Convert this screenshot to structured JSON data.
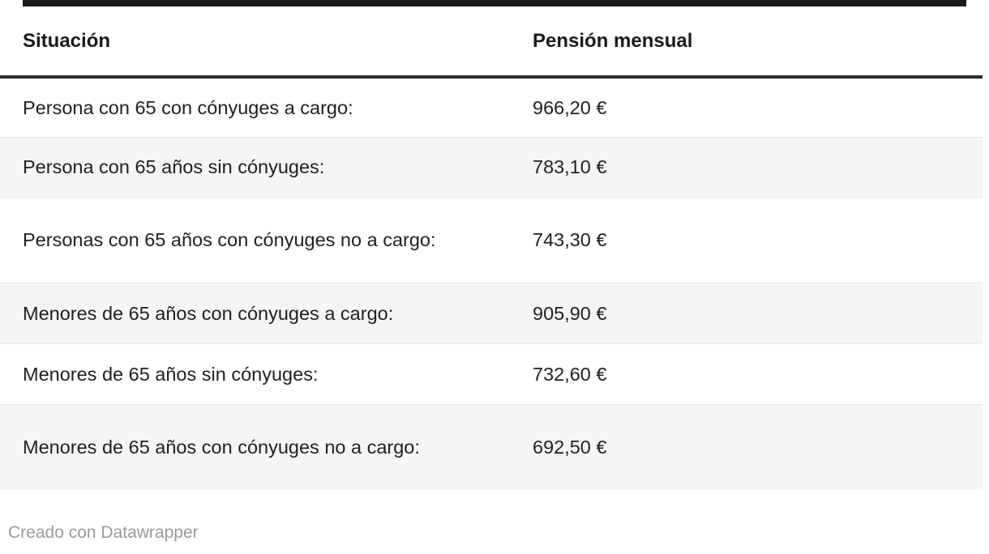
{
  "table": {
    "columns": [
      {
        "label": "Situación"
      },
      {
        "label": "Pensión mensual"
      }
    ],
    "rows": [
      {
        "situacion": "Persona con 65 con cónyuges a cargo:",
        "pension": "966,20 €"
      },
      {
        "situacion": "Persona con 65 años sin cónyuges:",
        "pension": "783,10 €"
      },
      {
        "situacion": "Personas con 65 años con cónyuges no a cargo:",
        "pension": "743,30 €"
      },
      {
        "situacion": "Menores de 65 años con cónyuges a cargo:",
        "pension": "905,90 €"
      },
      {
        "situacion": "Menores de 65 años sin cónyuges:",
        "pension": "732,60 €"
      },
      {
        "situacion": "Menores de 65 años con cónyuges no a cargo:",
        "pension": "692,50 €"
      }
    ]
  },
  "chart_data": {
    "type": "table",
    "title": "",
    "columns": [
      "Situación",
      "Pensión mensual"
    ],
    "rows": [
      [
        "Persona con 65 con cónyuges a cargo:",
        "966,20 €"
      ],
      [
        "Persona con 65 años sin cónyuges:",
        "783,10 €"
      ],
      [
        "Personas con 65 años con cónyuges no a cargo:",
        "743,30 €"
      ],
      [
        "Menores de 65 años con cónyuges a cargo:",
        "905,90 €"
      ],
      [
        "Menores de 65 años sin cónyuges:",
        "732,60 €"
      ],
      [
        "Menores de 65 años con cónyuges no a cargo:",
        "692,50 €"
      ]
    ],
    "values_eur": [
      966.2,
      783.1,
      743.3,
      905.9,
      732.6,
      692.5
    ],
    "layout_hints": {
      "zebra_striping": true,
      "thick_rule_below_header": true,
      "thick_bar_above_table": true
    }
  },
  "footer": {
    "attribution": "Creado con Datawrapper"
  },
  "colors": {
    "top_bar": "#1a1a1a",
    "header_rule": "#2f2f2f",
    "row_alt_background": "#f5f5f5",
    "row_border": "#e9e9e9",
    "body_text": "#1f1f1f",
    "header_text": "#1a1a1a",
    "footer_text": "#9a9a9a"
  }
}
